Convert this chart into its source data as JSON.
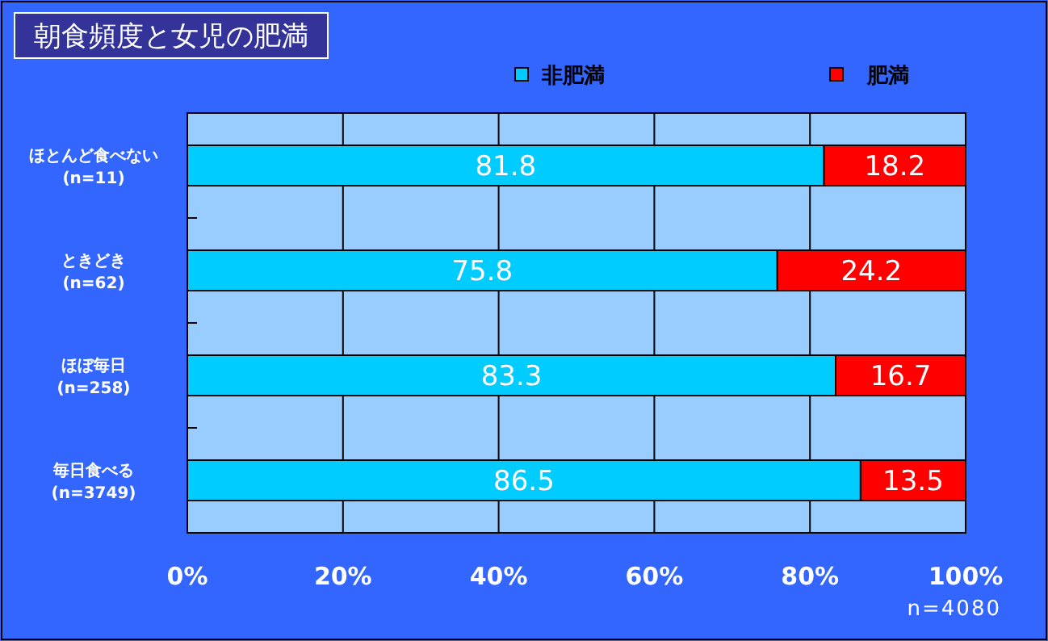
{
  "chart_data": {
    "type": "bar",
    "orientation": "horizontal",
    "stacked": true,
    "title": "朝食頻度と女児の肥満",
    "categories": [
      "ほとんど食べない\n(n=11)",
      "ときどき\n(n=62)",
      "ほぼ毎日\n(n=258)",
      "毎日食べる\n(n=3749)"
    ],
    "series": [
      {
        "name": "非肥満",
        "color": "#00ccff",
        "values": [
          81.8,
          75.8,
          83.3,
          86.5
        ]
      },
      {
        "name": "肥満",
        "color": "#ff0000",
        "values": [
          18.2,
          24.2,
          16.7,
          13.5
        ]
      }
    ],
    "xlim": [
      0,
      100
    ],
    "xticks": [
      {
        "value": 0,
        "label": "0%"
      },
      {
        "value": 20,
        "label": "20%"
      },
      {
        "value": 40,
        "label": "40%"
      },
      {
        "value": 60,
        "label": "60%"
      },
      {
        "value": 80,
        "label": "80%"
      },
      {
        "value": 100,
        "label": "100%"
      }
    ],
    "grid": "x",
    "legend": "top",
    "data_labels": true,
    "annotations": [
      "n=4080"
    ]
  }
}
